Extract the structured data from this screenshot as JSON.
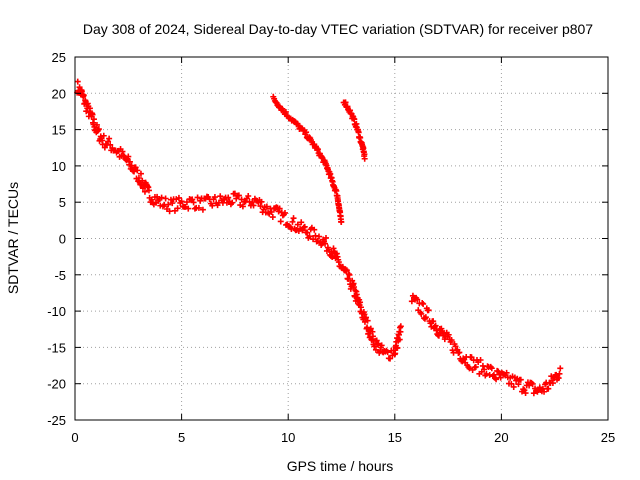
{
  "chart_data": {
    "type": "scatter",
    "title": "Day 308 of 2024, Sidereal Day-to-day VTEC variation (SDTVAR) for receiver p807",
    "xlabel": "GPS time / hours",
    "ylabel": "SDTVAR / TECUs",
    "xlim": [
      0,
      25
    ],
    "ylim": [
      -25,
      25
    ],
    "xticks": [
      0,
      5,
      10,
      15,
      20,
      25
    ],
    "yticks": [
      -25,
      -20,
      -15,
      -10,
      -5,
      0,
      5,
      10,
      15,
      20,
      25
    ],
    "grid": true,
    "marker": "plus",
    "series_color": "#ff0000",
    "series": [
      {
        "name": "main",
        "spread": 0.9,
        "points": [
          [
            0.1,
            21.0
          ],
          [
            0.3,
            20.0
          ],
          [
            0.5,
            18.5
          ],
          [
            0.8,
            16.5
          ],
          [
            1.0,
            15.0
          ],
          [
            1.3,
            13.5
          ],
          [
            1.6,
            13.0
          ],
          [
            2.0,
            12.0
          ],
          [
            2.5,
            10.5
          ],
          [
            3.0,
            8.5
          ],
          [
            3.5,
            6.0
          ],
          [
            4.0,
            5.0
          ],
          [
            4.5,
            4.6
          ],
          [
            5.0,
            4.8
          ],
          [
            5.5,
            5.0
          ],
          [
            6.0,
            4.8
          ],
          [
            6.5,
            5.0
          ],
          [
            7.0,
            5.2
          ],
          [
            7.5,
            5.3
          ],
          [
            8.0,
            5.0
          ],
          [
            8.5,
            5.2
          ],
          [
            9.0,
            4.0
          ],
          [
            9.5,
            3.5
          ],
          [
            10.0,
            2.5
          ],
          [
            10.5,
            1.5
          ],
          [
            11.0,
            0.8
          ],
          [
            11.5,
            0.0
          ],
          [
            12.0,
            -1.5
          ],
          [
            12.5,
            -4.0
          ],
          [
            13.0,
            -6.5
          ],
          [
            13.5,
            -10.5
          ],
          [
            14.0,
            -14.0
          ],
          [
            14.5,
            -16.0
          ],
          [
            15.0,
            -15.5
          ],
          [
            15.3,
            -12.5
          ]
        ]
      },
      {
        "name": "tail",
        "spread": 1.0,
        "points": [
          [
            15.8,
            -8.5
          ],
          [
            16.2,
            -9.5
          ],
          [
            16.8,
            -11.5
          ],
          [
            17.3,
            -13.5
          ],
          [
            17.8,
            -15.0
          ],
          [
            18.3,
            -16.5
          ],
          [
            18.8,
            -17.5
          ],
          [
            19.3,
            -18.0
          ],
          [
            19.8,
            -19.0
          ],
          [
            20.3,
            -19.5
          ],
          [
            20.8,
            -20.0
          ],
          [
            21.3,
            -20.5
          ],
          [
            21.8,
            -21.0
          ],
          [
            22.3,
            -20.0
          ],
          [
            22.8,
            -18.0
          ]
        ]
      },
      {
        "name": "arc-a",
        "spread": 0.3,
        "points": [
          [
            9.3,
            19.3
          ],
          [
            9.8,
            17.5
          ],
          [
            10.3,
            16.0
          ],
          [
            10.8,
            14.5
          ],
          [
            11.3,
            12.5
          ],
          [
            11.8,
            10.0
          ],
          [
            12.3,
            6.0
          ],
          [
            12.5,
            2.0
          ]
        ]
      },
      {
        "name": "arc-b",
        "spread": 0.3,
        "points": [
          [
            12.6,
            19.0
          ],
          [
            12.9,
            17.5
          ],
          [
            13.2,
            15.5
          ],
          [
            13.5,
            12.5
          ],
          [
            13.6,
            11.0
          ]
        ]
      }
    ]
  }
}
